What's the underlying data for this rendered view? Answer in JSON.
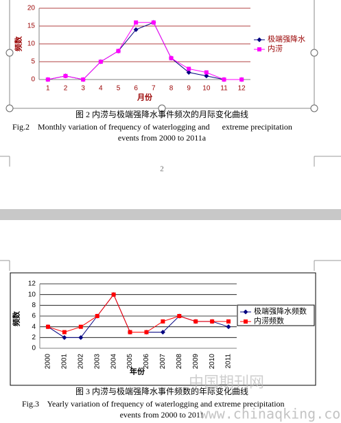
{
  "chart_data": [
    {
      "type": "line",
      "categories": [
        "1",
        "2",
        "3",
        "4",
        "5",
        "6",
        "7",
        "8",
        "9",
        "10",
        "11",
        "12"
      ],
      "series": [
        {
          "name": "极端强降水",
          "color": "#000080",
          "marker": "diamond",
          "values": [
            0,
            1,
            0,
            5,
            8,
            14,
            16,
            6,
            2,
            1,
            0,
            0
          ]
        },
        {
          "name": "内涝",
          "color": "#ff00ff",
          "marker": "square",
          "values": [
            0,
            1,
            0,
            5,
            8,
            16,
            16,
            6,
            3,
            2,
            0,
            0
          ]
        }
      ],
      "ylim": [
        0,
        20
      ],
      "yticks": [
        0,
        5,
        10,
        15,
        20
      ],
      "grid": true,
      "grid_color": "#990000",
      "text_color": "#990000",
      "y_label": "频数",
      "x_label": "月份",
      "legend": "right"
    },
    {
      "type": "line",
      "categories": [
        "2000",
        "2001",
        "2002",
        "2003",
        "2004",
        "2005",
        "2006",
        "2007",
        "2008",
        "2009",
        "2010",
        "2011"
      ],
      "series": [
        {
          "name": "极端强降水频数",
          "color": "#000080",
          "marker": "diamond",
          "values": [
            4,
            2,
            2,
            6,
            10,
            3,
            3,
            3,
            6,
            5,
            5,
            4
          ]
        },
        {
          "name": "内涝频数",
          "color": "#ff0000",
          "marker": "square",
          "values": [
            4,
            3,
            4,
            6,
            10,
            3,
            3,
            5,
            6,
            5,
            5,
            5
          ]
        }
      ],
      "ylim": [
        0,
        12
      ],
      "yticks": [
        0,
        2,
        4,
        6,
        8,
        10,
        12
      ],
      "grid": true,
      "grid_color": "#000000",
      "text_color": "#000000",
      "y_label": "频数",
      "x_label": "年份",
      "legend": "right"
    }
  ],
  "captions": [
    {
      "cn": "图 2  内涝与极端强降水事件频次的月际变化曲线",
      "en1": "Fig.2    Monthly variation of frequency of waterlogging and      extreme precipitation",
      "en2": "events from 2000 to 2011a"
    },
    {
      "cn": "图 3  内涝与极端强降水事件频数的年际变化曲线",
      "en1": "Fig.3    Yearly variation of frequency of waterlogging and extreme precipitation",
      "en2": "events from 2000 to 2011"
    }
  ],
  "page_number": "2",
  "watermark": {
    "cn": "中国期刊网",
    "url": "www.chinaqking.com"
  }
}
